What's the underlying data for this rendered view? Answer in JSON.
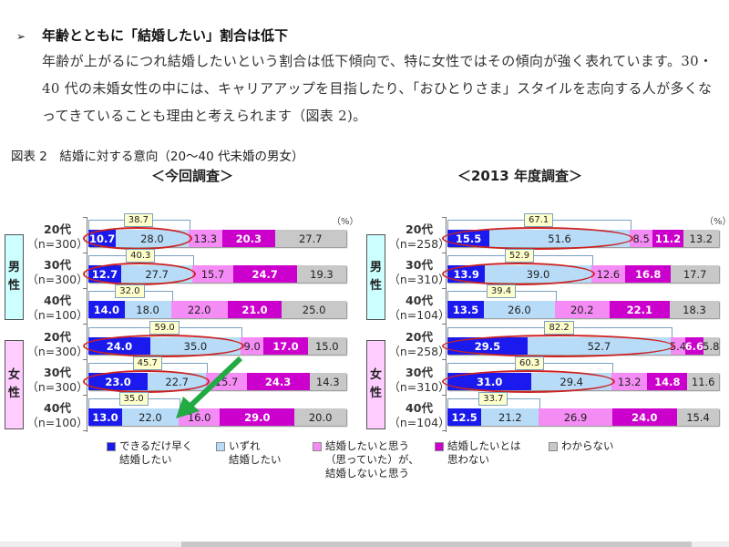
{
  "heading": {
    "bullet": "➢",
    "text": "年齢とともに「結婚したい」割合は低下"
  },
  "paragraph": "年齢が上がるにつれ結婚したいという割合は低下傾向で、特に女性ではその傾向が強く表れています。30・40 代の未婚女性の中には、キャリアアップを目指したり、「おひとりさま」スタイルを志向する人が多くなってきていることも理由と考えられます（図表 2)。",
  "figure_title": "図表 2　結婚に対する意向（20～40 代未婚の男女）",
  "unit": "（%）",
  "gender_labels": {
    "male": "男\n性",
    "female": "女\n性"
  },
  "legend": [
    {
      "label": "できるだけ早く\n結婚したい",
      "color": "#1a1aee"
    },
    {
      "label": "いずれ\n結婚したい",
      "color": "#b8dcf8"
    },
    {
      "label": "結婚したいと思う\n（思っていた）が、\n結婚しないと思う",
      "color": "#f58cf5"
    },
    {
      "label": "結婚したいとは\n思わない",
      "color": "#cc00cc"
    },
    {
      "label": "わからない",
      "color": "#c8c8c8"
    }
  ],
  "chart_data": [
    {
      "type": "bar",
      "orientation": "horizontal-stacked-100",
      "title": "＜今回調査＞",
      "unit": "%",
      "categories": [
        "男性 20代 (n=300)",
        "男性 30代 (n=300)",
        "男性 40代 (n=100)",
        "女性 20代 (n=300)",
        "女性 30代 (n=300)",
        "女性 40代 (n=100)"
      ],
      "rows": [
        {
          "gender": "男性",
          "age": "20代",
          "n": "（n=300）",
          "values": [
            10.7,
            28.0,
            13.3,
            20.3,
            27.7
          ],
          "sum": "38.7",
          "highlight": true
        },
        {
          "gender": "男性",
          "age": "30代",
          "n": "（n=300）",
          "values": [
            12.7,
            27.7,
            15.7,
            24.7,
            19.3
          ],
          "sum": "40.3",
          "highlight": true
        },
        {
          "gender": "男性",
          "age": "40代",
          "n": "（n=100）",
          "values": [
            14.0,
            18.0,
            22.0,
            21.0,
            25.0
          ],
          "sum": "32.0",
          "highlight": false
        },
        {
          "gender": "女性",
          "age": "20代",
          "n": "（n=300）",
          "values": [
            24.0,
            35.0,
            9.0,
            17.0,
            15.0
          ],
          "sum": "59.0",
          "highlight": true
        },
        {
          "gender": "女性",
          "age": "30代",
          "n": "（n=300）",
          "values": [
            23.0,
            22.7,
            15.7,
            24.3,
            14.3
          ],
          "sum": "45.7",
          "highlight": true
        },
        {
          "gender": "女性",
          "age": "40代",
          "n": "（n=100）",
          "values": [
            13.0,
            22.0,
            16.0,
            29.0,
            20.0
          ],
          "sum": "35.0",
          "highlight": false
        }
      ],
      "series": [
        {
          "name": "できるだけ早く結婚したい",
          "values": [
            10.7,
            12.7,
            14.0,
            24.0,
            23.0,
            13.0
          ]
        },
        {
          "name": "いずれ結婚したい",
          "values": [
            28.0,
            27.7,
            18.0,
            35.0,
            22.7,
            22.0
          ]
        },
        {
          "name": "結婚したいと思う（思っていた）が、結婚しないと思う",
          "values": [
            13.3,
            15.7,
            22.0,
            9.0,
            15.7,
            16.0
          ]
        },
        {
          "name": "結婚したいとは思わない",
          "values": [
            20.3,
            24.7,
            21.0,
            17.0,
            24.3,
            29.0
          ]
        },
        {
          "name": "わからない",
          "values": [
            27.7,
            19.3,
            25.0,
            15.0,
            14.3,
            20.0
          ]
        }
      ],
      "annotation": "green arrow from 女性20代 to 女性40代",
      "xlim": [
        0,
        100
      ]
    },
    {
      "type": "bar",
      "orientation": "horizontal-stacked-100",
      "title": "＜2013 年度調査＞",
      "unit": "%",
      "categories": [
        "男性 20代 (n=258)",
        "男性 30代 (n=310)",
        "男性 40代 (n=104)",
        "女性 20代 (n=258)",
        "女性 30代 (n=310)",
        "女性 40代 (n=104)"
      ],
      "rows": [
        {
          "gender": "男性",
          "age": "20代",
          "n": "（n=258）",
          "values": [
            15.5,
            51.6,
            8.5,
            11.2,
            13.2
          ],
          "sum": "67.1",
          "highlight": true
        },
        {
          "gender": "男性",
          "age": "30代",
          "n": "（n=310）",
          "values": [
            13.9,
            39.0,
            12.6,
            16.8,
            17.7
          ],
          "sum": "52.9",
          "highlight": true
        },
        {
          "gender": "男性",
          "age": "40代",
          "n": "（n=104）",
          "values": [
            13.5,
            26.0,
            20.2,
            22.1,
            18.3
          ],
          "sum": "39.4",
          "highlight": false
        },
        {
          "gender": "女性",
          "age": "20代",
          "n": "（n=258）",
          "values": [
            29.5,
            52.7,
            5.4,
            6.6,
            5.8
          ],
          "sum": "82.2",
          "highlight": true
        },
        {
          "gender": "女性",
          "age": "30代",
          "n": "（n=310）",
          "values": [
            31.0,
            29.4,
            13.2,
            14.8,
            11.6
          ],
          "sum": "60.3",
          "highlight": true
        },
        {
          "gender": "女性",
          "age": "40代",
          "n": "（n=104）",
          "values": [
            12.5,
            21.2,
            26.9,
            24.0,
            15.4
          ],
          "sum": "33.7",
          "highlight": false
        }
      ],
      "series": [
        {
          "name": "できるだけ早く結婚したい",
          "values": [
            15.5,
            13.9,
            13.5,
            29.5,
            31.0,
            12.5
          ]
        },
        {
          "name": "いずれ結婚したい",
          "values": [
            51.6,
            39.0,
            26.0,
            52.7,
            29.4,
            21.2
          ]
        },
        {
          "name": "結婚したいと思う（思っていた）が、結婚しないと思う",
          "values": [
            8.5,
            12.6,
            20.2,
            5.4,
            13.2,
            26.9
          ]
        },
        {
          "name": "結婚したいとは思わない",
          "values": [
            11.2,
            16.8,
            22.1,
            6.6,
            14.8,
            24.0
          ]
        },
        {
          "name": "わからない",
          "values": [
            13.2,
            17.7,
            18.3,
            5.8,
            11.6,
            15.4
          ]
        }
      ],
      "xlim": [
        0,
        100
      ]
    }
  ]
}
